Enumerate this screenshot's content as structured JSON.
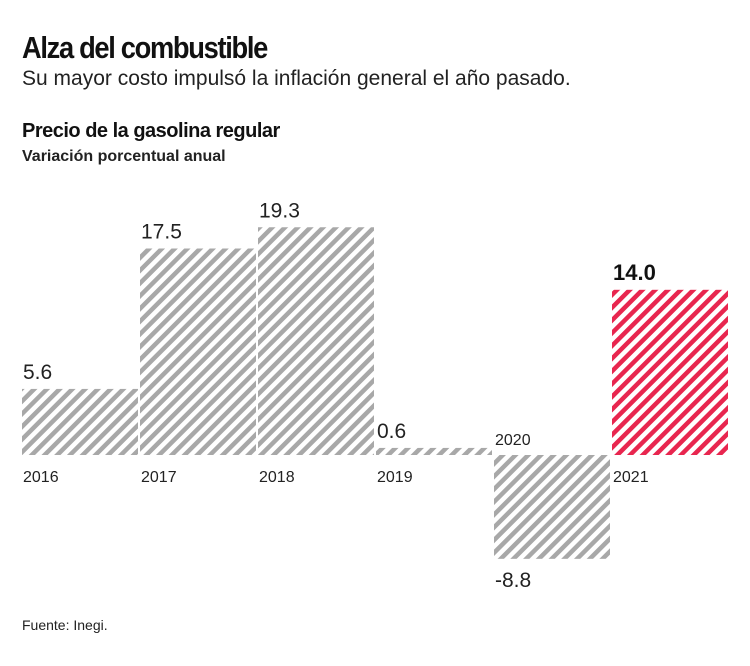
{
  "title": "Alza del combustible",
  "subtitle": "Su mayor costo impulsó la inflación general el año pasado.",
  "source": "Fuente: Inegi.",
  "colors": {
    "default": "#a8a8a8",
    "highlight": "#e8264f"
  },
  "chart_data": {
    "type": "bar",
    "title": "Precio de la gasolina regular",
    "subtitle": "Variación porcentual anual",
    "categories": [
      "2016",
      "2017",
      "2018",
      "2019",
      "2020",
      "2021"
    ],
    "values": [
      5.6,
      17.5,
      19.3,
      0.6,
      -8.8,
      14.0
    ],
    "value_labels": [
      "5.6",
      "17.5",
      "19.3",
      "0.6",
      "-8.8",
      "14.0"
    ],
    "highlight": "2021",
    "fill": "diagonal hatch",
    "grid": false
  }
}
